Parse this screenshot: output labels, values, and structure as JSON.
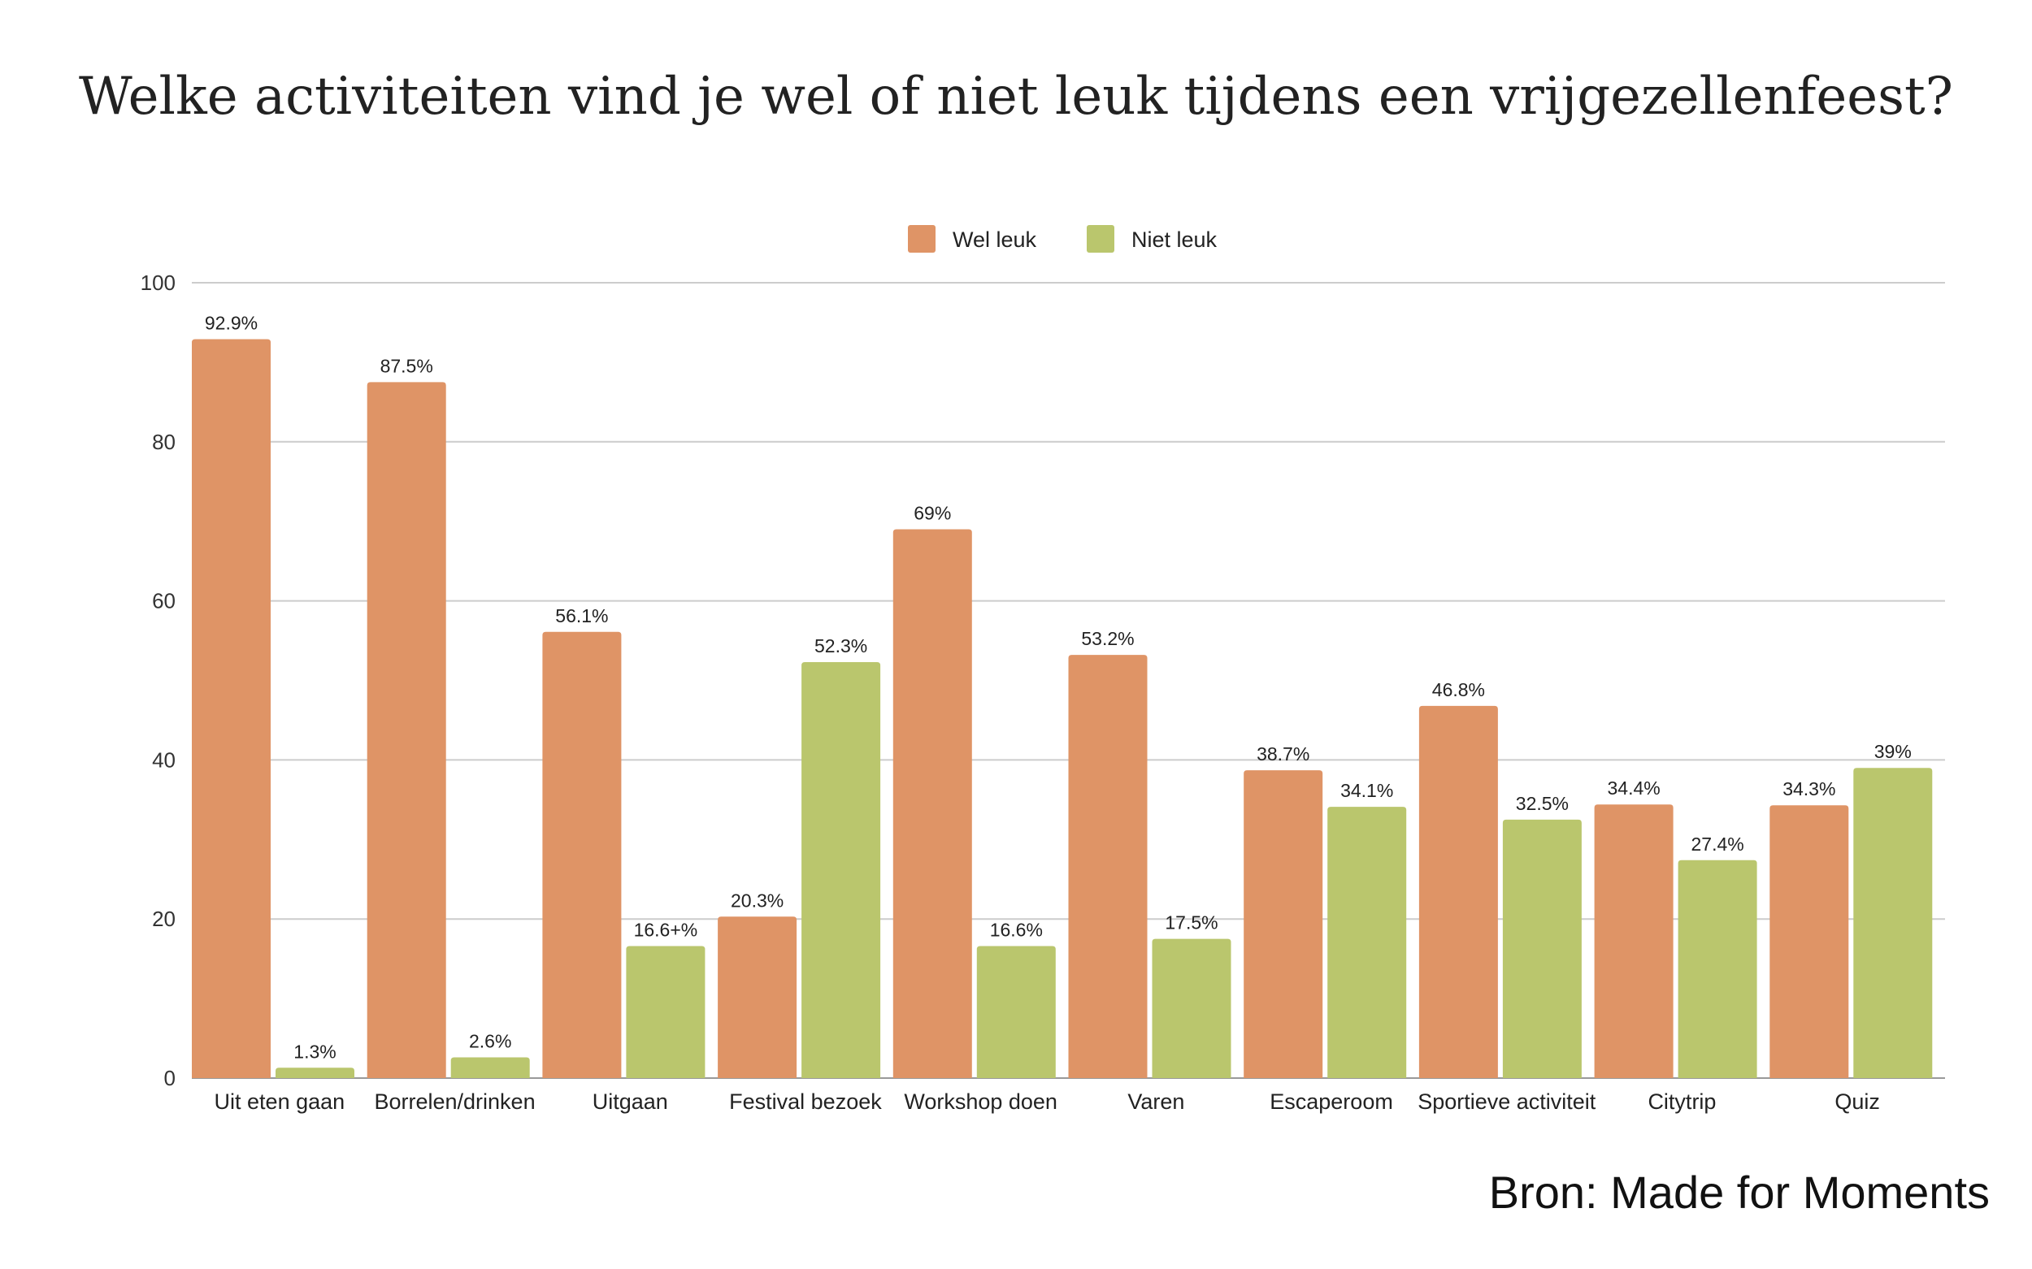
{
  "chart_data": {
    "type": "bar",
    "title": "Welke activiteiten vind je wel of niet leuk tijdens een vrijgezellenfeest?",
    "xlabel": "",
    "ylabel": "",
    "ylim": [
      0,
      100
    ],
    "yticks": [
      "0",
      "20",
      "40",
      "60",
      "80",
      "100"
    ],
    "grid": true,
    "legend_position": "top-center",
    "categories": [
      "Uit eten gaan",
      "Borrelen/drinken",
      "Uitgaan",
      "Festival bezoek",
      "Workshop doen",
      "Varen",
      "Escaperoom",
      "Sportieve activiteit",
      "Citytrip",
      "Quiz"
    ],
    "series": [
      {
        "name": "Wel leuk",
        "color": "#df9466",
        "values": [
          92.9,
          87.5,
          56.1,
          20.3,
          69,
          53.2,
          38.7,
          46.8,
          34.4,
          34.3
        ],
        "labels": [
          "92.9%",
          "87.5%",
          "56.1%",
          "20.3%",
          "69%",
          "53.2%",
          "38.7%",
          "46.8%",
          "34.4%",
          "34.3%"
        ]
      },
      {
        "name": "Niet leuk",
        "color": "#bac66d",
        "values": [
          1.3,
          2.6,
          16.6,
          52.3,
          16.6,
          17.5,
          34.1,
          32.5,
          27.4,
          39
        ],
        "labels": [
          "1.3%",
          "2.6%",
          "16.6+%",
          "52.3%",
          "16.6%",
          "17.5%",
          "34.1%",
          "32.5%",
          "27.4%",
          "39%"
        ]
      }
    ]
  },
  "source": "Bron: Made for Moments"
}
